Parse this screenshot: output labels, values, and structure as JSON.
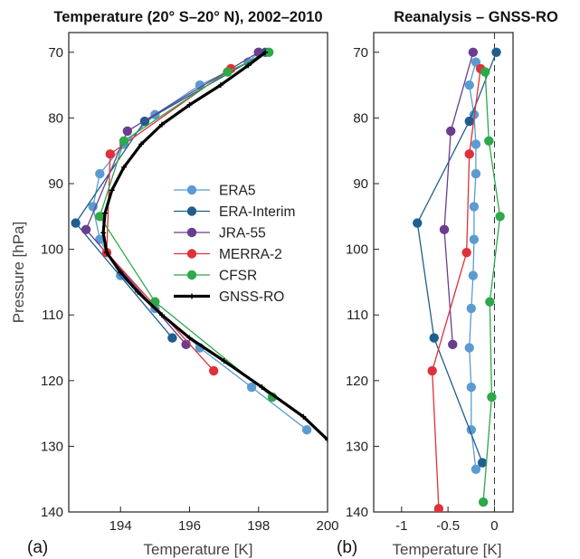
{
  "panel_labels": [
    "(a)",
    "(b)"
  ],
  "chart_data": [
    {
      "type": "line",
      "title": "Temperature (20° S–20° N), 2002–2010",
      "xlabel": "Temperature [K]",
      "ylabel": "Pressure [hPa]",
      "xlim": [
        192.5,
        200
      ],
      "ylim": [
        140,
        67
      ],
      "y_inverted": true,
      "xticks": [
        194,
        196,
        198,
        200
      ],
      "yticks": [
        70,
        80,
        90,
        100,
        110,
        120,
        130,
        140
      ],
      "grid": false,
      "legend_position": "center-right",
      "series": [
        {
          "name": "ERA5",
          "color": "#5b9bd1",
          "marker": "circle",
          "x": [
            198.0,
            197.7,
            196.3,
            195.0,
            194.1,
            193.4,
            193.2,
            193.4,
            194.0,
            195.0,
            196.3,
            197.8,
            199.4
          ],
          "y": [
            70,
            71.5,
            75,
            79.5,
            84,
            88.5,
            93.5,
            98.5,
            104,
            109,
            115,
            121,
            127.5
          ]
        },
        {
          "name": "ERA-Interim",
          "color": "#1f5e8e",
          "marker": "circle",
          "x": [
            198.2,
            194.7,
            192.7,
            195.5
          ],
          "y": [
            70,
            80.5,
            96,
            113.5
          ]
        },
        {
          "name": "JRA-55",
          "color": "#6a3d8f",
          "marker": "circle",
          "x": [
            198.0,
            194.2,
            193.0,
            195.9
          ],
          "y": [
            70,
            82,
            97,
            114.5
          ]
        },
        {
          "name": "MERRA-2",
          "color": "#e0303a",
          "marker": "circle",
          "x": [
            197.2,
            193.7,
            193.6,
            196.7
          ],
          "y": [
            72.5,
            85.5,
            100.5,
            118.5
          ]
        },
        {
          "name": "CFSR",
          "color": "#2da84a",
          "marker": "circle",
          "x": [
            198.3,
            197.1,
            194.1,
            193.4,
            195.0,
            198.4
          ],
          "y": [
            70,
            73,
            83.5,
            95,
            108,
            122.5
          ]
        },
        {
          "name": "GNSS-RO",
          "color": "#000000",
          "marker": "plus",
          "x": [
            198.2,
            197.7,
            196.9,
            196.0,
            195.2,
            194.6,
            194.1,
            193.75,
            193.55,
            193.5,
            193.6,
            194.0,
            194.5,
            195.2,
            196.0,
            197.0,
            198.1,
            199.3,
            200.0
          ],
          "y": [
            70,
            72,
            75,
            78,
            81,
            84,
            87.5,
            91,
            94.5,
            97.5,
            100.5,
            103.5,
            106.5,
            110,
            113.5,
            117,
            121,
            125.5,
            129
          ]
        }
      ]
    },
    {
      "type": "line",
      "title": "Reanalysis – GNSS-RO",
      "xlabel": "Temperature [K]",
      "ylabel": "",
      "xlim": [
        -1.3,
        0.2
      ],
      "ylim": [
        140,
        67
      ],
      "y_inverted": true,
      "xticks": [
        -1,
        -0.5,
        0
      ],
      "xticklabels": [
        "-1",
        "-0.5",
        "0"
      ],
      "yticks": [
        70,
        80,
        90,
        100,
        110,
        120,
        130,
        140
      ],
      "zero_line": "dashed",
      "series": [
        {
          "name": "ERA5",
          "color": "#5b9bd1",
          "x": [
            -0.2,
            -0.27,
            -0.22,
            -0.2,
            -0.2,
            -0.22,
            -0.22,
            -0.23,
            -0.25,
            -0.27,
            -0.25,
            -0.25,
            -0.2
          ],
          "y": [
            71.5,
            75,
            79.5,
            84,
            88.5,
            93.5,
            98.5,
            104,
            109,
            115,
            121,
            127.5,
            133.5
          ]
        },
        {
          "name": "ERA-Interim",
          "color": "#1f5e8e",
          "x": [
            0.02,
            -0.27,
            -0.83,
            -0.65,
            -0.13
          ],
          "y": [
            70,
            80.5,
            96,
            113.5,
            132.5
          ]
        },
        {
          "name": "JRA-55",
          "color": "#6a3d8f",
          "x": [
            -0.23,
            -0.47,
            -0.54,
            -0.45
          ],
          "y": [
            70,
            82,
            97,
            114.5
          ]
        },
        {
          "name": "MERRA-2",
          "color": "#e0303a",
          "x": [
            -0.15,
            -0.27,
            -0.3,
            -0.67,
            -0.6
          ],
          "y": [
            72.5,
            85.5,
            100.5,
            118.5,
            139.5
          ]
        },
        {
          "name": "CFSR",
          "color": "#2da84a",
          "x": [
            -0.1,
            -0.06,
            0.06,
            -0.05,
            -0.03,
            -0.12
          ],
          "y": [
            73,
            83.5,
            95,
            108,
            122.5,
            138.5
          ]
        }
      ]
    }
  ]
}
